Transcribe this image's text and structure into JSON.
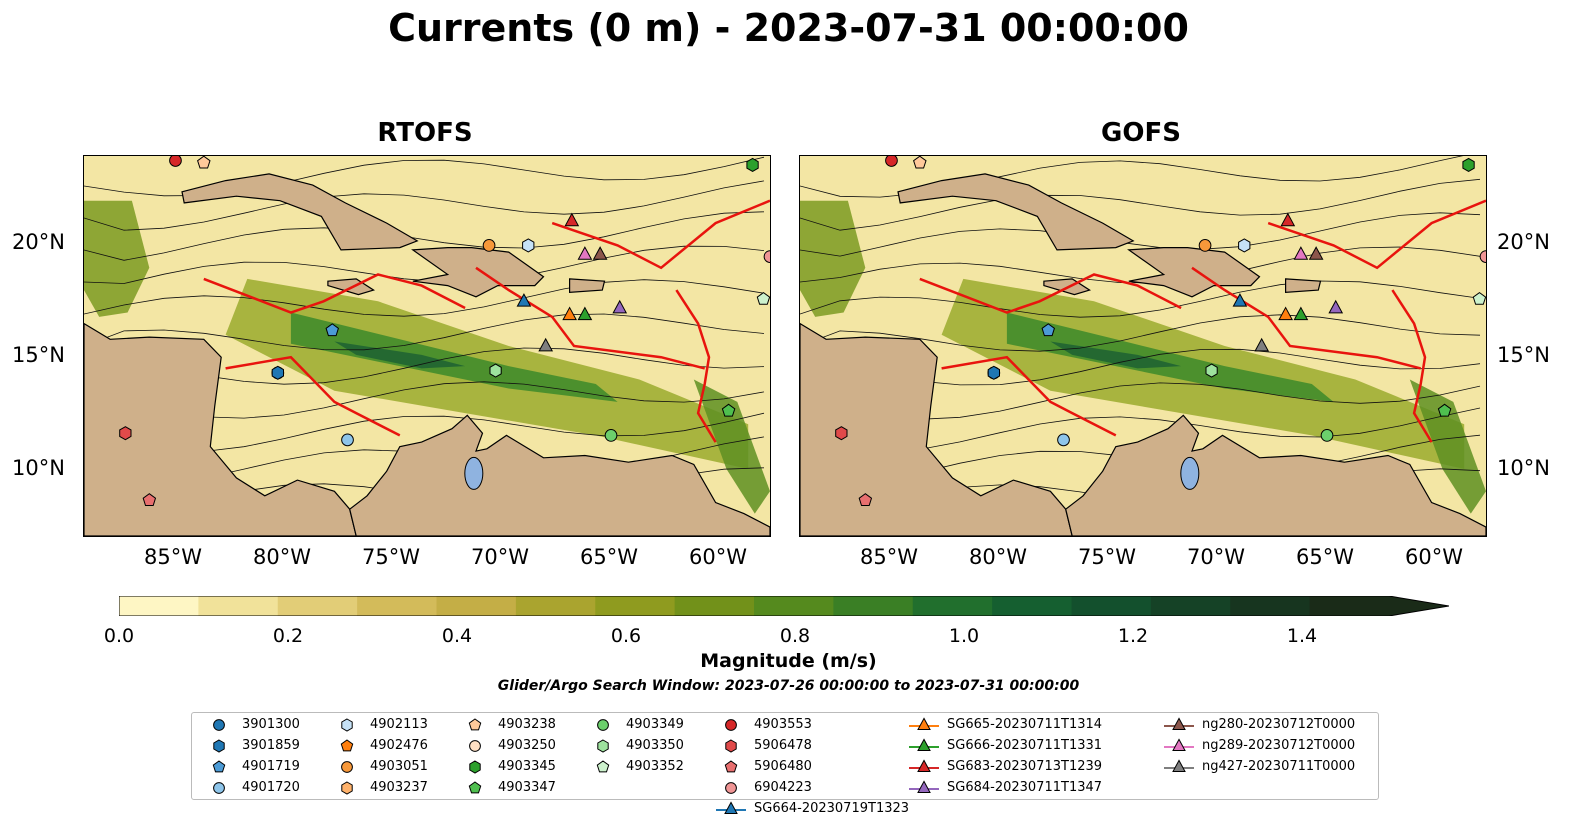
{
  "title": "Currents (0 m) - 2023-07-31 00:00:00",
  "panels": [
    {
      "title": "RTOFS"
    },
    {
      "title": "GOFS"
    }
  ],
  "axes": {
    "lon_ticks": [
      "85°W",
      "80°W",
      "75°W",
      "70°W",
      "65°W",
      "60°W"
    ],
    "lat_ticks": [
      "20°N",
      "15°N",
      "10°N"
    ],
    "lon_range": [
      -89.5,
      -58.0
    ],
    "lat_range": [
      7.0,
      24.0
    ]
  },
  "colorbar": {
    "title": "Magnitude (m/s)",
    "tick_labels": [
      "0.0",
      "0.2",
      "0.4",
      "0.6",
      "0.8",
      "1.0",
      "1.2",
      "1.4"
    ],
    "range": [
      0.0,
      1.5
    ],
    "extend": "max",
    "colors": [
      "#fef6c4",
      "#f1e29a",
      "#e2cd77",
      "#d3bb5a",
      "#c4ae46",
      "#aaa42f",
      "#8f9b1f",
      "#72911a",
      "#558a1e",
      "#3a7f25",
      "#216f2d",
      "#155f30",
      "#13502d",
      "#154226",
      "#17351f",
      "#1a2b18"
    ]
  },
  "subtitle": "Glider/Argo Search Window: 2023-07-26 00:00:00 to 2023-07-31 00:00:00",
  "legend": [
    {
      "label": "3901300",
      "marker": "circle",
      "color": "#1f77b4"
    },
    {
      "label": "3901859",
      "marker": "hexagon",
      "color": "#1f77b4"
    },
    {
      "label": "4901719",
      "marker": "pentagon",
      "color": "#4c9bd6"
    },
    {
      "label": "4901720",
      "marker": "circle",
      "color": "#8ec5ea"
    },
    {
      "label": "4902113",
      "marker": "hexagon",
      "color": "#c6e2f7"
    },
    {
      "label": "4902476",
      "marker": "pentagon",
      "color": "#ff7f0e"
    },
    {
      "label": "4903051",
      "marker": "circle",
      "color": "#f7983a"
    },
    {
      "label": "4903237",
      "marker": "hexagon",
      "color": "#ffb26b"
    },
    {
      "label": "4903238",
      "marker": "pentagon",
      "color": "#ffc99a"
    },
    {
      "label": "4903250",
      "marker": "circle",
      "color": "#ffe0c4"
    },
    {
      "label": "4903345",
      "marker": "hexagon",
      "color": "#2ca02c"
    },
    {
      "label": "4903347",
      "marker": "pentagon",
      "color": "#4fbf4f"
    },
    {
      "label": "4903349",
      "marker": "circle",
      "color": "#6ccf6c"
    },
    {
      "label": "4903350",
      "marker": "hexagon",
      "color": "#9ee29e"
    },
    {
      "label": "4903352",
      "marker": "pentagon",
      "color": "#cdf2cd"
    },
    {
      "label": "4903553",
      "marker": "circle",
      "color": "#d62728"
    },
    {
      "label": "5906478",
      "marker": "hexagon",
      "color": "#e04a4a"
    },
    {
      "label": "5906480",
      "marker": "pentagon",
      "color": "#e86f6f"
    },
    {
      "label": "6904223",
      "marker": "circle",
      "color": "#f09595"
    },
    {
      "label": "SG664-20230719T1323",
      "marker": "triangle",
      "color": "#1f77b4"
    },
    {
      "label": "SG665-20230711T1314",
      "marker": "triangle",
      "color": "#ff7f0e"
    },
    {
      "label": "SG666-20230711T1331",
      "marker": "triangle",
      "color": "#2ca02c"
    },
    {
      "label": "SG683-20230713T1239",
      "marker": "triangle",
      "color": "#d62728"
    },
    {
      "label": "SG684-20230711T1347",
      "marker": "triangle",
      "color": "#9467bd"
    },
    {
      "label": "ng280-20230712T0000",
      "marker": "triangle",
      "color": "#8c564b"
    },
    {
      "label": "ng289-20230712T0000",
      "marker": "triangle",
      "color": "#e377c2"
    },
    {
      "label": "ng427-20230711T0000",
      "marker": "triangle",
      "color": "#7f7f7f"
    }
  ],
  "markers": [
    {
      "id": "3901300",
      "lon": -80.6,
      "lat": 14.3
    },
    {
      "id": "3901859",
      "lon": -80.6,
      "lat": 14.3
    },
    {
      "id": "4901719",
      "lon": -78.1,
      "lat": 16.2
    },
    {
      "id": "4901720",
      "lon": -77.4,
      "lat": 11.3
    },
    {
      "id": "4902113",
      "lon": -69.1,
      "lat": 20.0
    },
    {
      "id": "4903051",
      "lon": -70.9,
      "lat": 20.0
    },
    {
      "id": "4903238",
      "lon": -84.0,
      "lat": 23.7
    },
    {
      "id": "4903345",
      "lon": -58.8,
      "lat": 23.6
    },
    {
      "id": "4903347",
      "lon": -59.9,
      "lat": 12.6
    },
    {
      "id": "4903349",
      "lon": -65.3,
      "lat": 11.5
    },
    {
      "id": "4903350",
      "lon": -70.6,
      "lat": 14.4
    },
    {
      "id": "4903352",
      "lon": -58.3,
      "lat": 17.6
    },
    {
      "id": "4903553",
      "lon": -85.3,
      "lat": 23.8
    },
    {
      "id": "5906478",
      "lon": -87.6,
      "lat": 11.6
    },
    {
      "id": "5906480",
      "lon": -86.5,
      "lat": 8.6
    },
    {
      "id": "6904223",
      "lon": -58.0,
      "lat": 19.5
    },
    {
      "id": "SG664-20230719T1323",
      "lon": -69.3,
      "lat": 17.5
    },
    {
      "id": "SG665-20230711T1314",
      "lon": -67.2,
      "lat": 16.9
    },
    {
      "id": "SG666-20230711T1331",
      "lon": -66.5,
      "lat": 16.9
    },
    {
      "id": "SG683-20230713T1239",
      "lon": -67.1,
      "lat": 21.1
    },
    {
      "id": "SG684-20230711T1347",
      "lon": -64.9,
      "lat": 17.2
    },
    {
      "id": "ng280-20230712T0000",
      "lon": -65.8,
      "lat": 19.6
    },
    {
      "id": "ng289-20230712T0000",
      "lon": -66.5,
      "lat": 19.6
    },
    {
      "id": "ng427-20230711T0000",
      "lon": -68.3,
      "lat": 15.5
    }
  ]
}
